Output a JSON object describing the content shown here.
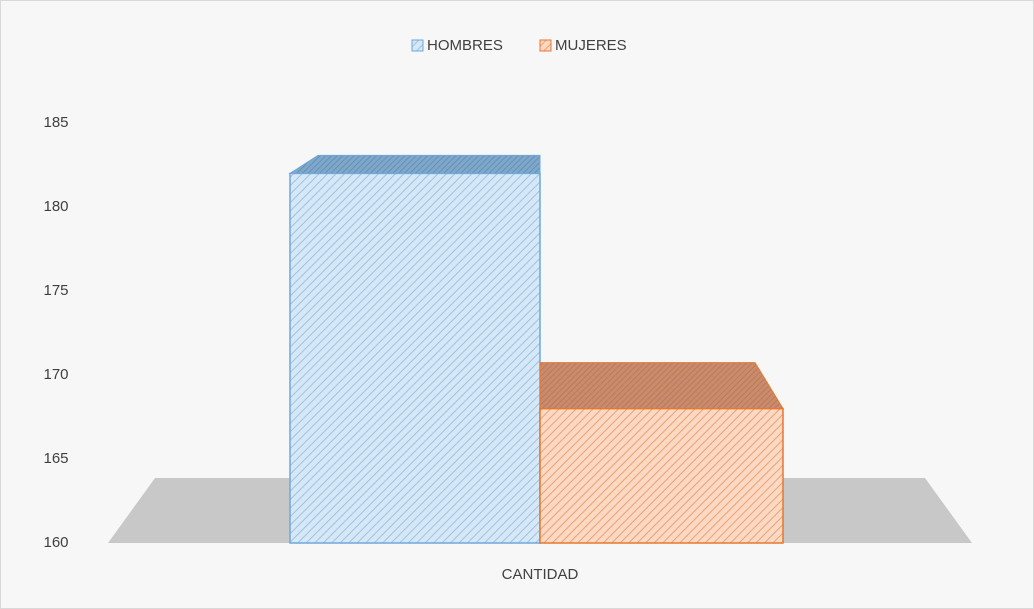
{
  "chart_data": {
    "type": "bar3d",
    "categories": [
      "CANTIDAD"
    ],
    "series": [
      {
        "name": "HOMBRES",
        "color": "#6fa8dc",
        "values": [
          182
        ]
      },
      {
        "name": "MUJERES",
        "color": "#e8772e",
        "values": [
          168
        ]
      }
    ],
    "ylim": [
      160,
      185
    ],
    "yticks": [
      160,
      165,
      170,
      175,
      180,
      185
    ],
    "legend": "top"
  }
}
